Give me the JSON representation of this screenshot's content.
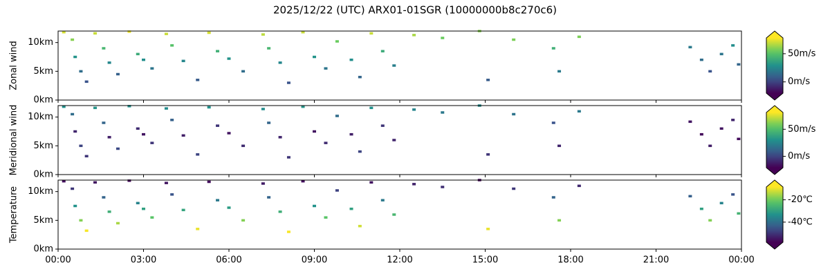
{
  "chart_data": [
    {
      "type": "heatmap",
      "title": "2025/12/22 (UTC) ARX01-01SGR (10000000b8c270c6)",
      "ylabel": "Zonal wind",
      "ylim": [
        0,
        12
      ],
      "yticks": [
        {
          "value": 0,
          "label": "0km"
        },
        {
          "value": 5,
          "label": "5km"
        },
        {
          "value": 10,
          "label": "10km"
        }
      ],
      "clim": [
        -20,
        78
      ],
      "cticks": [
        {
          "value": 0,
          "label": "0m/s"
        },
        {
          "value": 50,
          "label": "50m/s"
        }
      ],
      "x": [
        0.2,
        0.5,
        0.6,
        0.8,
        1.0,
        1.3,
        1.6,
        1.8,
        2.1,
        2.5,
        2.8,
        3.0,
        3.3,
        3.8,
        4.0,
        4.4,
        4.9,
        5.3,
        5.6,
        6.0,
        6.5,
        7.2,
        7.4,
        7.8,
        8.1,
        8.6,
        9.0,
        9.4,
        9.8,
        10.3,
        10.6,
        11.0,
        11.4,
        11.8,
        12.5,
        13.5,
        14.8,
        15.1,
        16.0,
        17.4,
        17.6,
        18.3,
        22.2,
        22.6,
        22.9,
        23.3,
        23.7,
        23.9
      ],
      "y": [
        11.8,
        10.5,
        7.5,
        5,
        3.2,
        11.6,
        9,
        6.5,
        4.5,
        11.9,
        8,
        7,
        5.5,
        11.5,
        9.5,
        6.8,
        3.5,
        11.7,
        8.5,
        7.2,
        5,
        11.4,
        9,
        6.5,
        3,
        11.8,
        7.5,
        5.5,
        10.2,
        7,
        4,
        11.6,
        8.5,
        6,
        11.3,
        10.8,
        12,
        3.5,
        10.5,
        9,
        5,
        11,
        9.2,
        7,
        5,
        8,
        9.5,
        6.2
      ],
      "values": [
        72,
        60,
        30,
        15,
        5,
        70,
        45,
        25,
        10,
        75,
        40,
        28,
        18,
        70,
        50,
        25,
        8,
        72,
        42,
        30,
        15,
        68,
        45,
        25,
        5,
        70,
        30,
        18,
        55,
        28,
        12,
        70,
        40,
        22,
        65,
        55,
        60,
        8,
        58,
        42,
        20,
        58,
        20,
        15,
        5,
        18,
        28,
        12
      ]
    },
    {
      "type": "heatmap",
      "ylabel": "Meridional wind",
      "ylim": [
        0,
        12
      ],
      "yticks": [
        {
          "value": 0,
          "label": "0km"
        },
        {
          "value": 5,
          "label": "5km"
        },
        {
          "value": 10,
          "label": "10km"
        }
      ],
      "clim": [
        -21,
        81
      ],
      "cticks": [
        {
          "value": 0,
          "label": "0m/s"
        },
        {
          "value": 50,
          "label": "50m/s"
        }
      ],
      "x": [
        0.2,
        0.5,
        0.6,
        0.8,
        1.0,
        1.3,
        1.6,
        1.8,
        2.1,
        2.5,
        2.8,
        3.0,
        3.3,
        3.8,
        4.0,
        4.4,
        4.9,
        5.3,
        5.6,
        6.0,
        6.5,
        7.2,
        7.4,
        7.8,
        8.1,
        8.6,
        9.0,
        9.4,
        9.8,
        10.3,
        10.6,
        11.0,
        11.4,
        11.8,
        12.5,
        13.5,
        14.8,
        15.1,
        16.0,
        17.4,
        17.6,
        18.3,
        22.2,
        22.6,
        22.9,
        23.3,
        23.7,
        23.9
      ],
      "y": [
        11.8,
        10.5,
        7.5,
        5,
        3.2,
        11.6,
        9,
        6.5,
        4.5,
        11.9,
        8,
        7,
        5.5,
        11.5,
        9.5,
        6.8,
        3.5,
        11.7,
        8.5,
        7.2,
        5,
        11.4,
        9,
        6.5,
        3,
        11.8,
        7.5,
        5.5,
        10.2,
        7,
        4,
        11.6,
        8.5,
        6,
        11.3,
        10.8,
        12,
        3.5,
        10.5,
        9,
        5,
        11,
        9.2,
        7,
        5,
        8,
        9.5,
        6.2
      ],
      "values": [
        30,
        15,
        -10,
        0,
        -5,
        32,
        12,
        -12,
        2,
        30,
        -8,
        -15,
        -5,
        28,
        10,
        -12,
        0,
        30,
        -5,
        -15,
        -8,
        28,
        12,
        -10,
        -5,
        32,
        -15,
        -8,
        15,
        -12,
        0,
        30,
        -5,
        -10,
        25,
        20,
        28,
        -5,
        18,
        5,
        -10,
        20,
        -15,
        -18,
        -12,
        -15,
        -10,
        -18
      ]
    },
    {
      "type": "heatmap",
      "ylabel": "Temperature",
      "ylim": [
        0,
        12
      ],
      "yticks": [
        {
          "value": 0,
          "label": "0km"
        },
        {
          "value": 5,
          "label": "5km"
        },
        {
          "value": 10,
          "label": "10km"
        }
      ],
      "xlim": [
        0,
        24
      ],
      "xticks": [
        {
          "value": 0,
          "label": "00:00"
        },
        {
          "value": 3,
          "label": "03:00"
        },
        {
          "value": 6,
          "label": "06:00"
        },
        {
          "value": 9,
          "label": "09:00"
        },
        {
          "value": 12,
          "label": "12:00"
        },
        {
          "value": 15,
          "label": "15:00"
        },
        {
          "value": 18,
          "label": "18:00"
        },
        {
          "value": 21,
          "label": "21:00"
        },
        {
          "value": 24,
          "label": "00:00"
        }
      ],
      "clim": [
        -58,
        -8.5
      ],
      "cticks": [
        {
          "value": -20,
          "label": "-20℃"
        },
        {
          "value": -40,
          "label": "-40℃"
        }
      ],
      "x": [
        0.2,
        0.5,
        0.6,
        0.8,
        1.0,
        1.3,
        1.6,
        1.8,
        2.1,
        2.5,
        2.8,
        3.0,
        3.3,
        3.8,
        4.0,
        4.4,
        4.9,
        5.3,
        5.6,
        6.0,
        6.5,
        7.2,
        7.4,
        7.8,
        8.1,
        8.6,
        9.0,
        9.4,
        9.8,
        10.3,
        10.6,
        11.0,
        11.4,
        11.8,
        12.5,
        13.5,
        14.8,
        15.1,
        16.0,
        17.4,
        17.6,
        18.3,
        22.2,
        22.6,
        22.9,
        23.3,
        23.7,
        23.9
      ],
      "y": [
        11.8,
        10.5,
        7.5,
        5,
        3.2,
        11.6,
        9,
        6.5,
        4.5,
        11.9,
        8,
        7,
        5.5,
        11.5,
        9.5,
        6.8,
        3.5,
        11.7,
        8.5,
        7.2,
        5,
        11.4,
        9,
        6.5,
        3,
        11.8,
        7.5,
        5.5,
        10.2,
        7,
        4,
        11.6,
        8.5,
        6,
        11.3,
        10.8,
        12,
        3.5,
        10.5,
        9,
        5,
        11,
        9.2,
        7,
        5,
        8,
        9.5,
        6.2
      ],
      "values": [
        -56,
        -50,
        -33,
        -18,
        -9,
        -55,
        -42,
        -27,
        -15,
        -57,
        -36,
        -30,
        -22,
        -55,
        -45,
        -29,
        -10,
        -56,
        -38,
        -31,
        -18,
        -54,
        -42,
        -27,
        -9,
        -56,
        -33,
        -22,
        -48,
        -30,
        -12,
        -55,
        -38,
        -25,
        -53,
        -51,
        -57,
        -10,
        -50,
        -42,
        -18,
        -52,
        -43,
        -30,
        -18,
        -36,
        -45,
        -26
      ]
    }
  ]
}
